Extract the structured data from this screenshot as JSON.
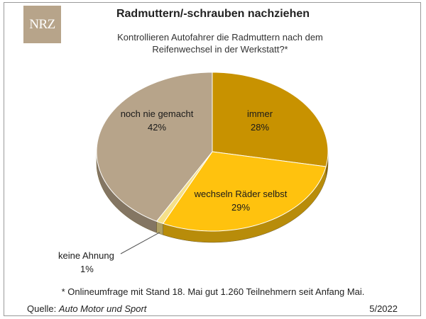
{
  "logo_text": "NRZ",
  "chart_data": {
    "type": "pie",
    "title": "Radmuttern/-schrauben nachziehen",
    "subtitle": "Kontrollieren Autofahrer die Radmuttern nach dem Reifenwechsel in der Werkstatt?*",
    "slices": [
      {
        "label": "immer",
        "value": 28,
        "value_label": "28%",
        "color": "#c89200"
      },
      {
        "label": "wechseln Räder selbst",
        "value": 29,
        "value_label": "29%",
        "color": "#ffc20e"
      },
      {
        "label": "keine Ahnung",
        "value": 1,
        "value_label": "1%",
        "color": "#f5e08a"
      },
      {
        "label": "noch nie gemacht",
        "value": 42,
        "value_label": "42%",
        "color": "#b7a48a"
      }
    ],
    "style": "3d",
    "legend": "none"
  },
  "footnote": "* Onlineumfrage mit Stand 18. Mai gut 1.260 Teilnehmern seit Anfang Mai.",
  "source": {
    "prefix": "Quelle:",
    "name": "Auto Motor und Sport"
  },
  "date": "5/2022"
}
